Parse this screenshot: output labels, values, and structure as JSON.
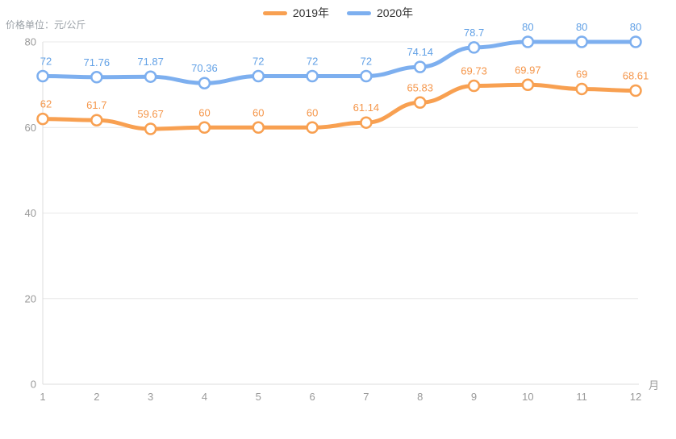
{
  "chart_data": {
    "type": "line",
    "title": "",
    "unit_label": "价格单位：元/公斤",
    "x_axis_suffix": "月",
    "categories": [
      "1",
      "2",
      "3",
      "4",
      "5",
      "6",
      "7",
      "8",
      "9",
      "10",
      "11",
      "12"
    ],
    "series": [
      {
        "name": "2019年",
        "color": "#F8A051",
        "label_color": "#F5964A",
        "values": [
          62,
          61.7,
          59.67,
          60,
          60,
          60,
          61.14,
          65.83,
          69.73,
          69.97,
          69,
          68.61
        ]
      },
      {
        "name": "2020年",
        "color": "#7DAFEF",
        "label_color": "#62A1E6",
        "values": [
          72,
          71.76,
          71.87,
          70.36,
          72,
          72,
          72,
          74.14,
          78.7,
          80,
          80,
          80
        ]
      }
    ],
    "y_ticks": [
      0,
      20,
      40,
      60,
      80
    ],
    "ylim": [
      0,
      80
    ],
    "legend_position": "top-center",
    "grid": true,
    "smooth": true,
    "colors": {
      "gridline": "#E8E8E8",
      "axis_line": "#DDDDDD",
      "tick_label": "#999999",
      "legend_text": "#333333",
      "background": "#FFFFFF"
    }
  }
}
